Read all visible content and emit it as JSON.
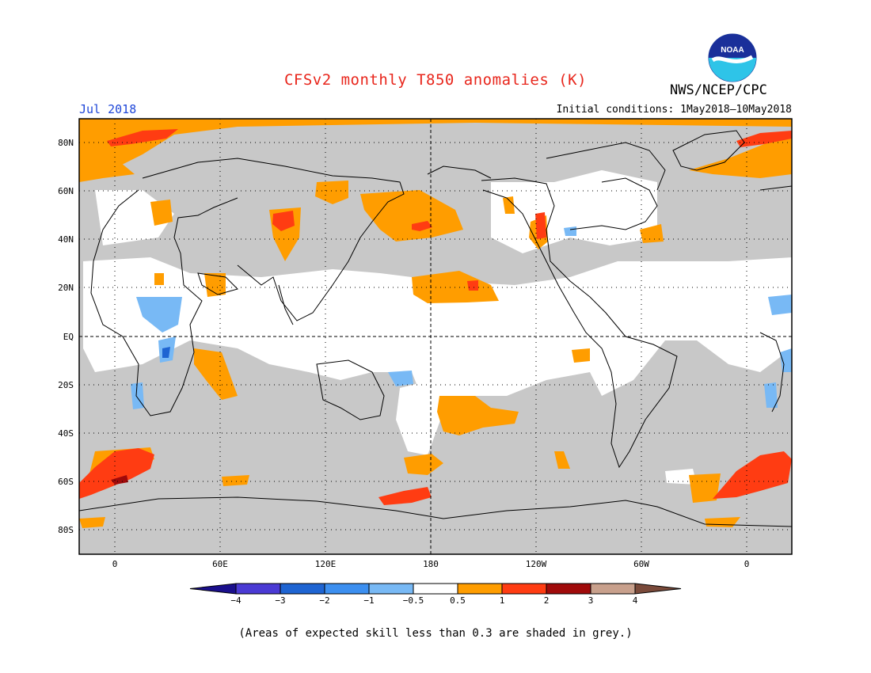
{
  "header": {
    "title": "CFSv2 monthly T850 anomalies (K)",
    "agency": "NWS/NCEP/CPC",
    "logo_text": "NOAA",
    "month": "Jul 2018",
    "initial_conditions": "Initial conditions: 1May2018–10May2018"
  },
  "map": {
    "lat_labels": [
      "80N",
      "60N",
      "40N",
      "20N",
      "EQ",
      "20S",
      "40S",
      "60S",
      "80S"
    ],
    "lon_labels": [
      "0",
      "60E",
      "120E",
      "180",
      "120W",
      "60W",
      "0"
    ],
    "skill_mask_color": "#c8c8c8"
  },
  "colorbar": {
    "labels": [
      "−4",
      "−3",
      "−2",
      "−1",
      "−0.5",
      "0.5",
      "1",
      "2",
      "3",
      "4"
    ],
    "colors": [
      "#1a0f8c",
      "#4a3ad4",
      "#1e64d2",
      "#3c8ff0",
      "#78b9f5",
      "#ffffff",
      "#ff9d00",
      "#ff3c12",
      "#a00a0a",
      "#c8a08c",
      "#7a4a3a"
    ]
  },
  "caption": "(Areas of expected skill less than 0.3 are shaded in grey.)"
}
